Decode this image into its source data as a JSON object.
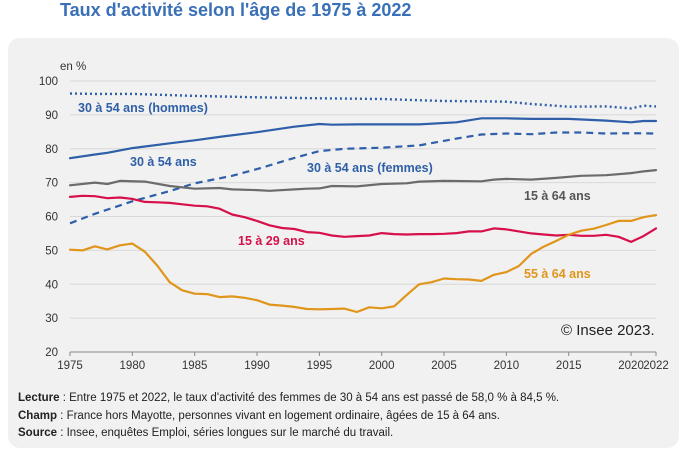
{
  "title": "Taux d'activité selon l'âge de 1975 à 2022",
  "credit": "© Insee 2023.",
  "notes": [
    {
      "label": "Lecture",
      "text": " : Entre 1975 et 2022, le taux d'activité des femmes de 30 à 54 ans est passé de 58,0 % à 84,5 %."
    },
    {
      "label": "Champ",
      "text": " : France hors Mayotte, personnes vivant en logement ordinaire, âgées de 15 à 64 ans."
    },
    {
      "label": "Source",
      "text": " : Insee, enquêtes Emploi, séries longues sur le marché du travail."
    }
  ],
  "chart_data": {
    "type": "line",
    "title": "Taux d'activité selon l'âge de 1975 à 2022",
    "ylabel": "en %",
    "xlabel": "",
    "xlim": [
      1975,
      2022
    ],
    "ylim": [
      20,
      100
    ],
    "x_ticks": [
      "1975",
      "1980",
      "1985",
      "1990",
      "1995",
      "2000",
      "2005",
      "2010",
      "2015",
      "2020",
      "2022"
    ],
    "y_ticks": [
      "20",
      "30",
      "40",
      "50",
      "60",
      "70",
      "80",
      "90",
      "100"
    ],
    "grid": true,
    "series": [
      {
        "name": "30 à 54 ans (hommes)",
        "color": "#2e5fa8",
        "style": "dotted",
        "x": [
          1975,
          1977,
          1980,
          1985,
          1990,
          1995,
          2000,
          2005,
          2008,
          2010,
          2012,
          2015,
          2018,
          2020,
          2021,
          2022
        ],
        "y": [
          96.3,
          96.2,
          96.2,
          95.6,
          95.2,
          94.9,
          94.7,
          94.1,
          94.0,
          93.9,
          93.2,
          92.4,
          92.5,
          91.9,
          92.7,
          92.5
        ]
      },
      {
        "name": "30 à 54 ans",
        "color": "#2e5fa8",
        "style": "solid",
        "x": [
          1975,
          1977,
          1978,
          1980,
          1983,
          1985,
          1987,
          1990,
          1993,
          1995,
          1996,
          1998,
          2000,
          2003,
          2006,
          2008,
          2010,
          2012,
          2015,
          2018,
          2020,
          2021,
          2022
        ],
        "y": [
          77.2,
          78.3,
          78.8,
          80.2,
          81.6,
          82.5,
          83.5,
          84.9,
          86.5,
          87.3,
          87.1,
          87.2,
          87.2,
          87.2,
          87.8,
          89.0,
          89.0,
          88.8,
          88.8,
          88.3,
          87.8,
          88.2,
          88.2
        ]
      },
      {
        "name": "30 à 54 ans (femmes)",
        "color": "#2e5fa8",
        "style": "dashed",
        "x": [
          1975,
          1977,
          1980,
          1983,
          1985,
          1988,
          1990,
          1993,
          1995,
          1997,
          2000,
          2003,
          2006,
          2008,
          2010,
          2012,
          2014,
          2016,
          2018,
          2020,
          2022
        ],
        "y": [
          58.0,
          60.8,
          64.5,
          67.5,
          69.8,
          72.0,
          74.0,
          77.3,
          79.3,
          80.0,
          80.3,
          81.0,
          83.0,
          84.2,
          84.5,
          84.3,
          84.8,
          84.8,
          84.5,
          84.6,
          84.5
        ]
      },
      {
        "name": "15 à 64 ans",
        "color": "#6b6b6b",
        "style": "solid",
        "x": [
          1975,
          1977,
          1978,
          1979,
          1981,
          1983,
          1985,
          1987,
          1988,
          1990,
          1991,
          1993,
          1994,
          1995,
          1996,
          1998,
          2000,
          2002,
          2003,
          2005,
          2008,
          2009,
          2010,
          2012,
          2014,
          2016,
          2018,
          2020,
          2021,
          2022
        ],
        "y": [
          69.2,
          70.0,
          69.6,
          70.5,
          70.3,
          69.0,
          68.2,
          68.4,
          68.0,
          67.8,
          67.6,
          68.0,
          68.2,
          68.3,
          69.0,
          68.9,
          69.6,
          69.8,
          70.3,
          70.5,
          70.4,
          70.9,
          71.1,
          70.9,
          71.4,
          72.0,
          72.2,
          72.8,
          73.3,
          73.7
        ]
      },
      {
        "name": "15 à 29 ans",
        "color": "#d6104a",
        "style": "solid",
        "x": [
          1975,
          1976,
          1977,
          1978,
          1979,
          1980,
          1981,
          1982,
          1983,
          1984,
          1985,
          1986,
          1987,
          1988,
          1989,
          1990,
          1991,
          1992,
          1993,
          1994,
          1995,
          1996,
          1997,
          1998,
          1999,
          2000,
          2001,
          2002,
          2003,
          2004,
          2005,
          2006,
          2007,
          2008,
          2009,
          2010,
          2011,
          2012,
          2013,
          2014,
          2015,
          2016,
          2017,
          2018,
          2019,
          2020,
          2021,
          2022
        ],
        "y": [
          65.8,
          66.1,
          66.0,
          65.4,
          65.6,
          65.2,
          64.3,
          64.2,
          64.0,
          63.6,
          63.2,
          63.0,
          62.3,
          60.6,
          59.8,
          58.7,
          57.4,
          56.6,
          56.3,
          55.4,
          55.2,
          54.4,
          54.0,
          54.2,
          54.4,
          55.1,
          54.8,
          54.7,
          54.8,
          54.8,
          54.9,
          55.1,
          55.6,
          55.6,
          56.5,
          56.2,
          55.6,
          55.0,
          54.7,
          54.4,
          54.6,
          54.3,
          54.3,
          54.6,
          54.0,
          52.5,
          54.2,
          56.5
        ]
      },
      {
        "name": "55 à 64 ans",
        "color": "#e0951b",
        "style": "solid",
        "x": [
          1975,
          1976,
          1977,
          1978,
          1979,
          1980,
          1981,
          1982,
          1983,
          1984,
          1985,
          1986,
          1987,
          1988,
          1989,
          1990,
          1991,
          1992,
          1993,
          1994,
          1995,
          1996,
          1997,
          1998,
          1999,
          2000,
          2001,
          2002,
          2003,
          2004,
          2005,
          2006,
          2007,
          2008,
          2009,
          2010,
          2011,
          2012,
          2013,
          2014,
          2015,
          2016,
          2017,
          2018,
          2019,
          2020,
          2021,
          2022
        ],
        "y": [
          50.2,
          50.0,
          51.2,
          50.3,
          51.5,
          52.0,
          49.6,
          45.5,
          40.6,
          38.2,
          37.2,
          37.1,
          36.2,
          36.4,
          36.0,
          35.3,
          34.0,
          33.7,
          33.3,
          32.7,
          32.6,
          32.7,
          32.8,
          31.8,
          33.2,
          32.9,
          33.5,
          36.8,
          40.0,
          40.6,
          41.7,
          41.5,
          41.4,
          41.0,
          42.8,
          43.6,
          45.4,
          49.0,
          51.1,
          52.8,
          54.6,
          55.8,
          56.4,
          57.5,
          58.7,
          58.7,
          59.8,
          60.4
        ]
      }
    ],
    "annotations": [
      {
        "text": "30 à 54 ans (hommes)",
        "color": "#2e5fa8"
      },
      {
        "text": "30 à 54 ans",
        "color": "#2e5fa8"
      },
      {
        "text": "30 à 54 ans (femmes)",
        "color": "#2e5fa8"
      },
      {
        "text": "15 à 64 ans",
        "color": "#555555"
      },
      {
        "text": "15 à 29 ans",
        "color": "#d6104a"
      },
      {
        "text": "55 à 64 ans",
        "color": "#e0951b"
      }
    ]
  }
}
